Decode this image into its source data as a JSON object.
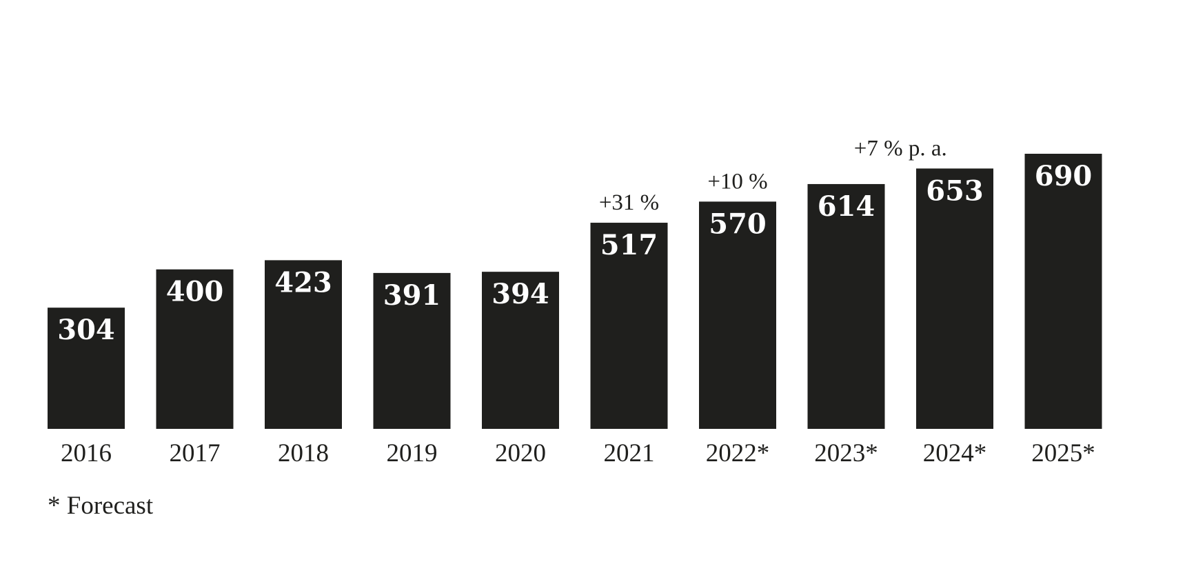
{
  "chart_data": {
    "type": "bar",
    "categories": [
      "2016",
      "2017",
      "2018",
      "2019",
      "2020",
      "2021",
      "2022*",
      "2023*",
      "2024*",
      "2025*"
    ],
    "values": [
      304,
      400,
      423,
      391,
      394,
      517,
      570,
      614,
      653,
      690
    ],
    "title": "",
    "xlabel": "",
    "ylabel": "",
    "ylim": [
      0,
      690
    ],
    "grid": false,
    "legend": "none",
    "bar_color": "#1f1f1d",
    "value_label_color": "#ffffff",
    "annotations": [
      {
        "text": "+31 %",
        "category_index": 5
      },
      {
        "text": "+10 %",
        "category_index": 6
      },
      {
        "text": "+7 % p. a.",
        "category_index": 7.5
      }
    ]
  },
  "footnote": "* Forecast"
}
